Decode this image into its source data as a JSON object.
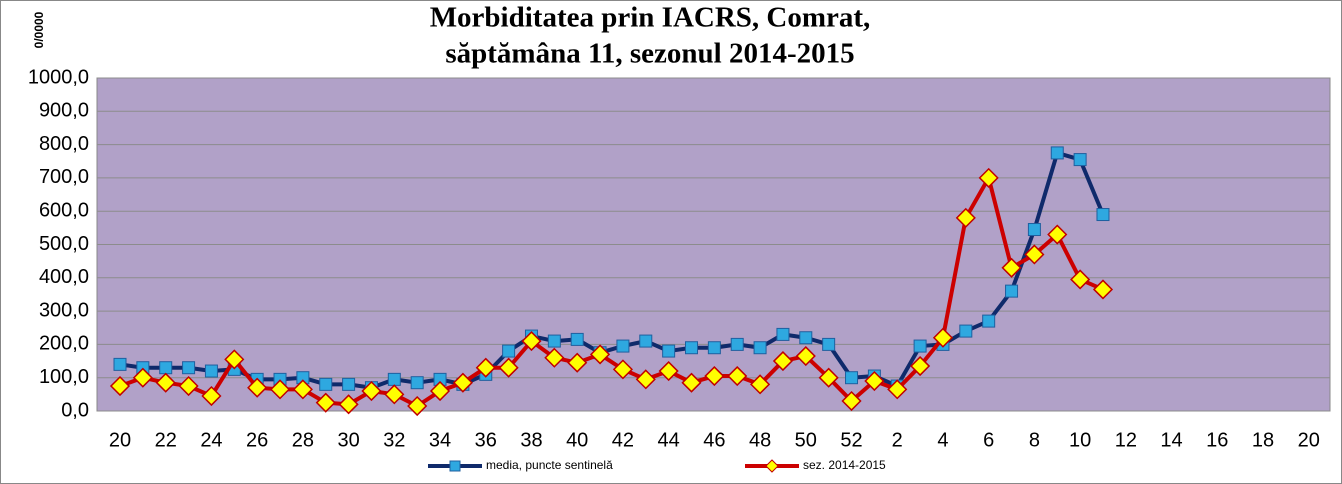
{
  "chart_data": {
    "type": "line",
    "title": [
      "Morbiditatea prin IACRS, Comrat,",
      "săptămâna  11, sezonul  2014-2015"
    ],
    "y_label": "0/0000",
    "categories": [
      "20",
      null,
      "22",
      null,
      "24",
      null,
      "26",
      null,
      "28",
      null,
      "30",
      null,
      "32",
      null,
      "34",
      null,
      "36",
      null,
      "38",
      null,
      "40",
      null,
      "42",
      null,
      "44",
      null,
      "46",
      null,
      "48",
      null,
      "50",
      null,
      "52",
      null,
      "2",
      null,
      "4",
      null,
      "6",
      null,
      "8",
      null,
      "10",
      null,
      "12",
      null,
      "14",
      null,
      "16",
      null,
      "18",
      null,
      "20"
    ],
    "series": [
      {
        "name": "media, puncte sentinelă",
        "color": "#0f2a6b",
        "marker": "square",
        "marker_color": "#2ea8e0",
        "values": [
          140,
          130,
          130,
          130,
          120,
          125,
          95,
          95,
          100,
          80,
          80,
          70,
          95,
          85,
          95,
          80,
          110,
          180,
          225,
          210,
          215,
          175,
          195,
          210,
          180,
          190,
          190,
          200,
          190,
          230,
          220,
          200,
          100,
          105,
          75,
          195,
          200,
          240,
          270,
          360,
          545,
          775,
          755,
          590,
          null,
          null,
          null,
          null,
          null,
          null,
          null,
          null,
          null
        ]
      },
      {
        "name": "sez. 2014-2015",
        "color": "#cc0000",
        "marker": "diamond",
        "marker_color": "#ffff00",
        "values": [
          75,
          100,
          85,
          75,
          45,
          155,
          70,
          65,
          65,
          25,
          20,
          60,
          50,
          15,
          60,
          85,
          130,
          130,
          210,
          160,
          145,
          170,
          125,
          95,
          120,
          85,
          105,
          105,
          80,
          150,
          165,
          100,
          30,
          90,
          65,
          135,
          220,
          580,
          700,
          430,
          470,
          530,
          395,
          365,
          null,
          null,
          null,
          null,
          null,
          null,
          null,
          null,
          null
        ]
      }
    ],
    "ylim": [
      0,
      1000
    ],
    "yticks": [
      {
        "value": 0,
        "label": "0,0"
      },
      {
        "value": 100,
        "label": "100,0"
      },
      {
        "value": 200,
        "label": "200,0"
      },
      {
        "value": 300,
        "label": "300,0"
      },
      {
        "value": 400,
        "label": "400,0"
      },
      {
        "value": 500,
        "label": "500,0"
      },
      {
        "value": 600,
        "label": "600,0"
      },
      {
        "value": 700,
        "label": "700,0"
      },
      {
        "value": 800,
        "label": "800,0"
      },
      {
        "value": 900,
        "label": "900,0"
      },
      {
        "value": 1000,
        "label": "1000,0"
      }
    ],
    "grid": true,
    "plot_background": "#b1a1c8",
    "legend": "bottom"
  }
}
